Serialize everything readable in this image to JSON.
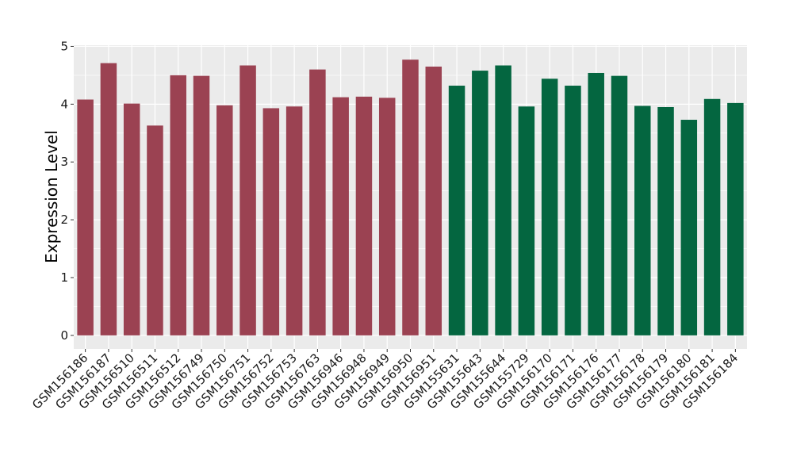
{
  "chart_data": {
    "type": "bar",
    "ylabel": "Expression Level",
    "xlabel": "",
    "ylim": [
      0,
      5
    ],
    "yticks": [
      0,
      1,
      2,
      3,
      4,
      5
    ],
    "grid": true,
    "legend": "none",
    "colors": {
      "group_a": "#9b4252",
      "group_b": "#046640",
      "panel": "#ebebeb",
      "grid": "#ffffff"
    },
    "categories": [
      "GSM156186",
      "GSM156187",
      "GSM156510",
      "GSM156511",
      "GSM156512",
      "GSM156749",
      "GSM156750",
      "GSM156751",
      "GSM156752",
      "GSM156753",
      "GSM156763",
      "GSM156946",
      "GSM156948",
      "GSM156949",
      "GSM156950",
      "GSM156951",
      "GSM155631",
      "GSM155643",
      "GSM155644",
      "GSM155729",
      "GSM156170",
      "GSM156171",
      "GSM156176",
      "GSM156177",
      "GSM156178",
      "GSM156179",
      "GSM156180",
      "GSM156181",
      "GSM156184"
    ],
    "values": [
      4.08,
      4.71,
      4.01,
      3.63,
      4.5,
      4.49,
      3.98,
      4.67,
      3.93,
      3.96,
      4.6,
      4.12,
      4.13,
      4.11,
      4.77,
      4.65,
      4.32,
      4.58,
      4.67,
      3.96,
      4.44,
      4.32,
      4.54,
      4.49,
      3.97,
      3.95,
      3.73,
      4.09,
      4.02
    ],
    "groups": [
      "a",
      "a",
      "a",
      "a",
      "a",
      "a",
      "a",
      "a",
      "a",
      "a",
      "a",
      "a",
      "a",
      "a",
      "a",
      "a",
      "b",
      "b",
      "b",
      "b",
      "b",
      "b",
      "b",
      "b",
      "b",
      "b",
      "b",
      "b",
      "b"
    ]
  }
}
